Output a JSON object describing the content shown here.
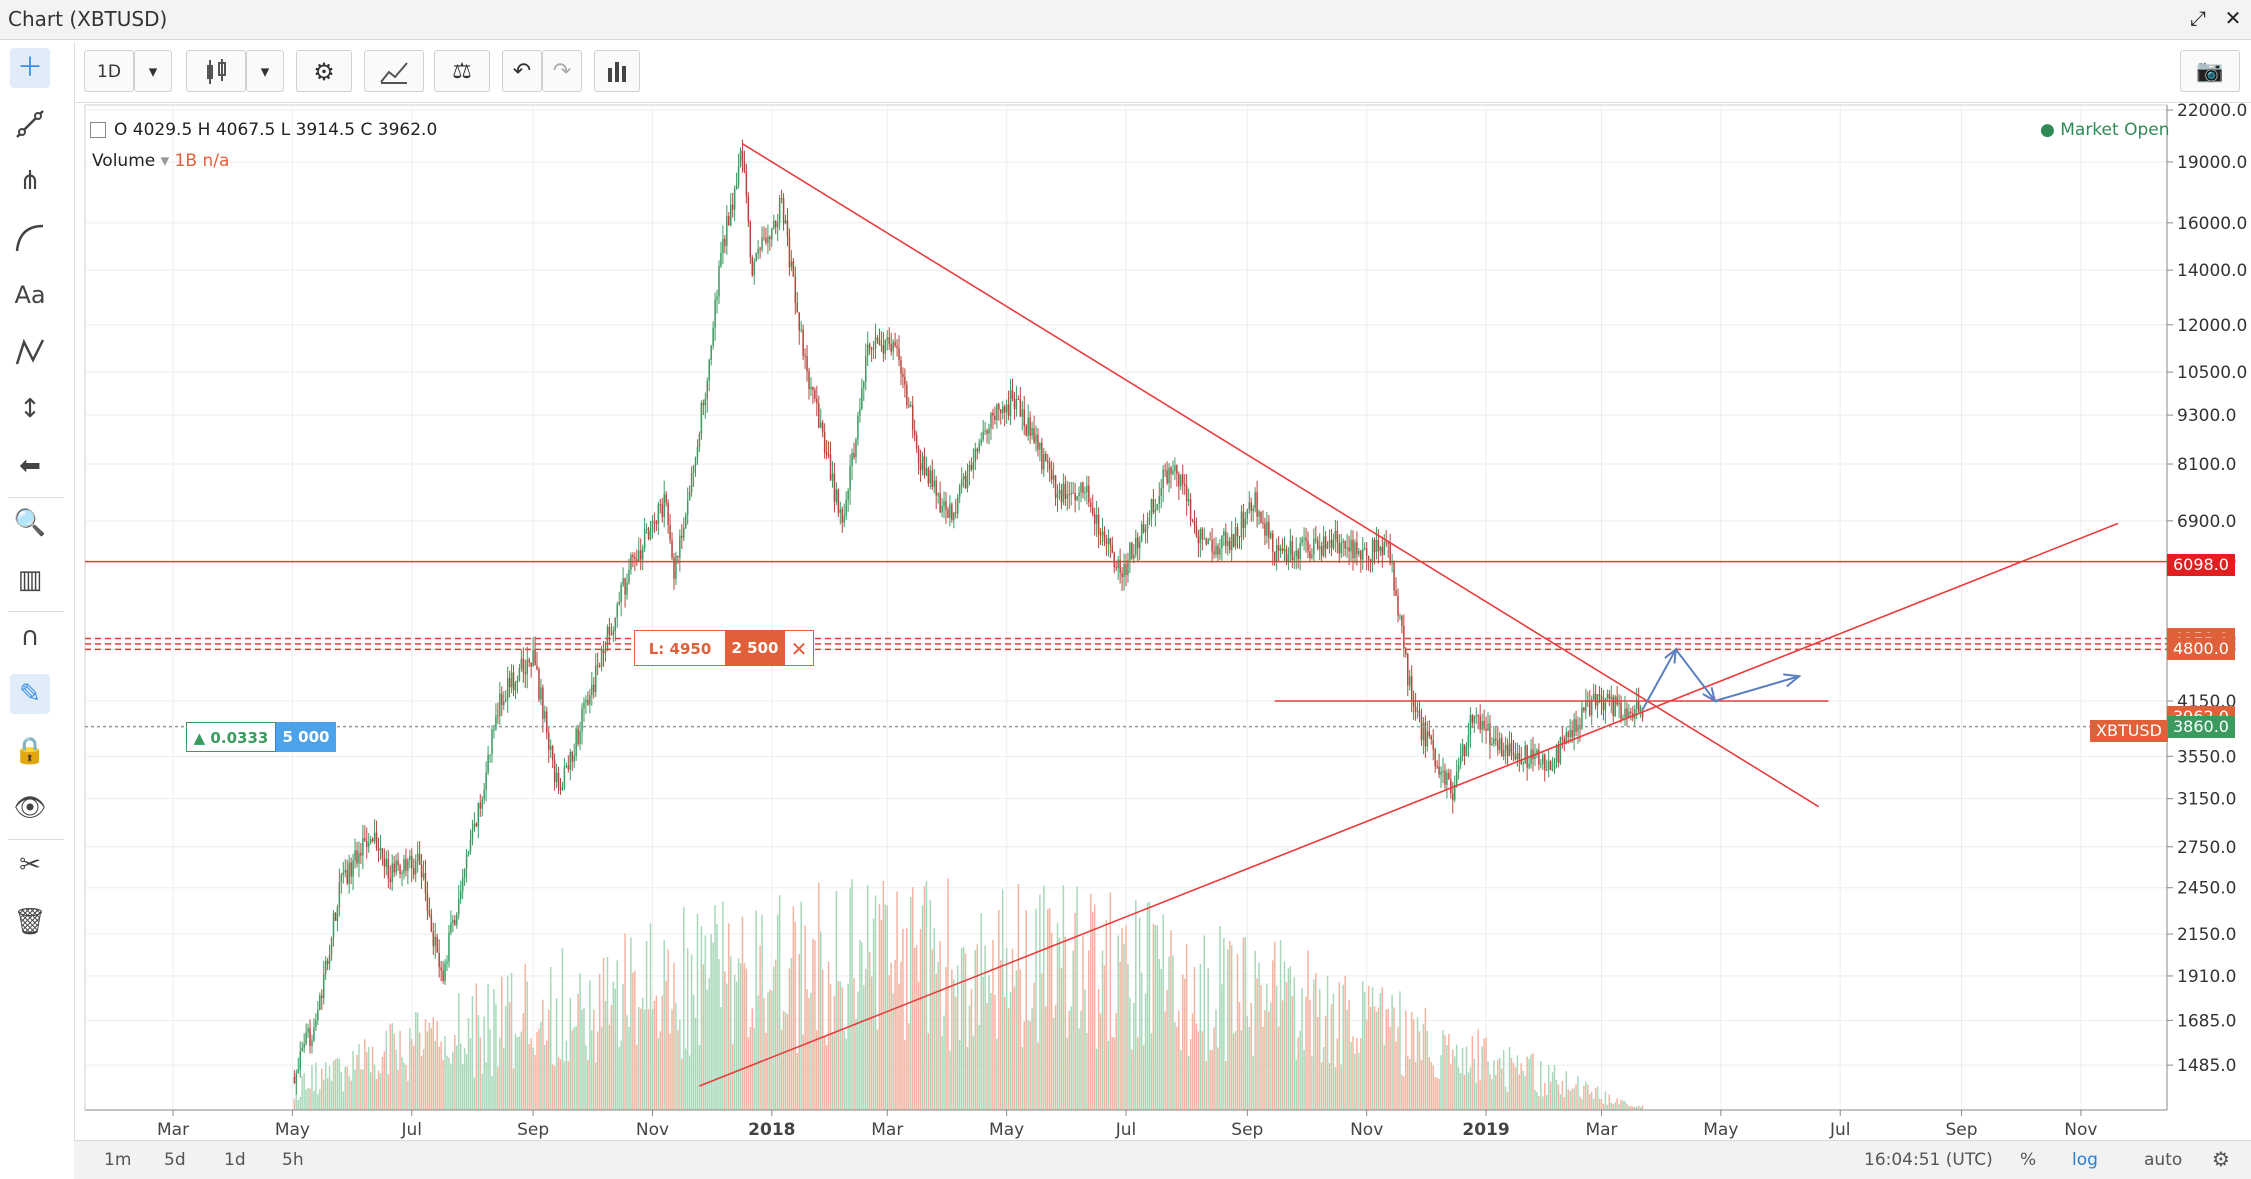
{
  "window": {
    "title": "Chart (XBTUSD)"
  },
  "toolbar": {
    "interval_label": "1D"
  },
  "legend": {
    "ohlc_text": "O 4029.5  H 4067.5  L 3914.5  C 3962.0",
    "volume_label": "Volume",
    "volume_value": "1B  n/a",
    "market_status": "● Market Open"
  },
  "orders": {
    "sell": {
      "label": "L: 4950",
      "qty": "2 500"
    },
    "buy": {
      "label": "▲ 0.0333",
      "qty": "5 000"
    }
  },
  "bottom": {
    "ranges": [
      "1m",
      "5d",
      "1d",
      "5h"
    ],
    "clock": "16:04:51 (UTC)",
    "percent": "%",
    "log": "log",
    "auto": "auto"
  },
  "colors": {
    "up": "#3c9a5f",
    "down": "#b8453c",
    "trend": "#e83c3c",
    "projection": "#5b7fbf",
    "sell_label": "#e0603a",
    "buy_label": "#4da3ea"
  },
  "chart_data": {
    "type": "candlestick",
    "symbol": "XBTUSD",
    "y_scale": "log",
    "ylim": [
      1400,
      22000
    ],
    "y_ticks": [
      "22000.0",
      "19000.0",
      "16000.0",
      "14000.0",
      "12000.0",
      "10500.0",
      "9300.0",
      "8100.0",
      "6900.0",
      "6150.0",
      "4950.0",
      "4875.0",
      "4800.0",
      "4150.0",
      "3550.0",
      "3150.0",
      "2750.0",
      "2450.0",
      "2150.0",
      "1910.0",
      "1685.0",
      "1485.0"
    ],
    "x_ticks": [
      "Mar",
      "May",
      "Jul",
      "Sep",
      "Nov",
      "2018",
      "Mar",
      "May",
      "Jul",
      "Sep",
      "Nov",
      "2019",
      "Mar",
      "May",
      "Jul",
      "Sep",
      "Nov"
    ],
    "x_tick_months": [
      "2017-03",
      "2017-05",
      "2017-07",
      "2017-09",
      "2017-11",
      "2018-01",
      "2018-03",
      "2018-05",
      "2018-07",
      "2018-09",
      "2018-11",
      "2019-01",
      "2019-03",
      "2019-05",
      "2019-07",
      "2019-09",
      "2019-11"
    ],
    "x_range": [
      "2017-01-15",
      "2019-12-15"
    ],
    "price_path": [
      [
        "2017-05-01",
        1420
      ],
      [
        "2017-05-15",
        1750
      ],
      [
        "2017-05-25",
        2450
      ],
      [
        "2017-06-10",
        2900
      ],
      [
        "2017-06-20",
        2550
      ],
      [
        "2017-07-05",
        2650
      ],
      [
        "2017-07-16",
        1900
      ],
      [
        "2017-08-05",
        3100
      ],
      [
        "2017-08-15",
        4200
      ],
      [
        "2017-09-01",
        4700
      ],
      [
        "2017-09-14",
        3200
      ],
      [
        "2017-10-01",
        4300
      ],
      [
        "2017-10-20",
        6000
      ],
      [
        "2017-11-08",
        7300
      ],
      [
        "2017-11-12",
        5900
      ],
      [
        "2017-11-28",
        10000
      ],
      [
        "2017-12-07",
        15000
      ],
      [
        "2017-12-17",
        19500
      ],
      [
        "2017-12-22",
        14000
      ],
      [
        "2018-01-06",
        17000
      ],
      [
        "2018-01-17",
        11000
      ],
      [
        "2018-02-06",
        6800
      ],
      [
        "2018-02-20",
        11500
      ],
      [
        "2018-03-05",
        11300
      ],
      [
        "2018-03-18",
        8200
      ],
      [
        "2018-04-01",
        6900
      ],
      [
        "2018-04-25",
        9400
      ],
      [
        "2018-05-05",
        9700
      ],
      [
        "2018-05-28",
        7400
      ],
      [
        "2018-06-10",
        7500
      ],
      [
        "2018-06-28",
        5900
      ],
      [
        "2018-07-25",
        8200
      ],
      [
        "2018-08-10",
        6400
      ],
      [
        "2018-08-25",
        6600
      ],
      [
        "2018-09-05",
        7300
      ],
      [
        "2018-09-15",
        6300
      ],
      [
        "2018-10-15",
        6500
      ],
      [
        "2018-11-13",
        6300
      ],
      [
        "2018-11-20",
        4800
      ],
      [
        "2018-11-25",
        4000
      ],
      [
        "2018-12-15",
        3200
      ],
      [
        "2018-12-25",
        4000
      ],
      [
        "2019-01-10",
        3650
      ],
      [
        "2019-02-01",
        3450
      ],
      [
        "2019-02-18",
        3900
      ],
      [
        "2019-02-24",
        4150
      ],
      [
        "2019-03-18",
        4030
      ],
      [
        "2019-03-22",
        3962
      ]
    ],
    "last_ohlc": {
      "open": 4029.5,
      "high": 4067.5,
      "low": 3914.5,
      "close": 3962.0
    },
    "price_labels": [
      {
        "value": 6098.0,
        "text": "6098.0",
        "color": "#e02020"
      },
      {
        "value": 4950.0,
        "text": "4950.0",
        "color": "#e0603a"
      },
      {
        "value": 4875.0,
        "text": "4875.0",
        "color": "#e0603a"
      },
      {
        "value": 4800.0,
        "text": "4800.0",
        "color": "#e0603a"
      },
      {
        "value": 3962.0,
        "text": "3962.0",
        "color": "#e0603a"
      },
      {
        "value": 3860.0,
        "text": "3860.0",
        "color": "#3c9a5f"
      }
    ],
    "symbol_label": "XBTUSD",
    "horizontal_lines": [
      {
        "value": 6150,
        "from": "2017-01-15",
        "to": "2019-12-15",
        "style": "solid"
      },
      {
        "value": 4950,
        "from": "2017-01-15",
        "to": "2019-12-15",
        "style": "dashed"
      },
      {
        "value": 4875,
        "from": "2017-01-15",
        "to": "2019-12-15",
        "style": "dashed"
      },
      {
        "value": 4800,
        "from": "2017-01-15",
        "to": "2019-12-15",
        "style": "dashed"
      },
      {
        "value": 3860,
        "from": "2017-01-15",
        "to": "2019-12-15",
        "style": "dotted"
      },
      {
        "value": 4150,
        "from": "2018-09-15",
        "to": "2019-06-25",
        "style": "solid"
      }
    ],
    "trend_lines": [
      {
        "from": [
          "2017-12-17",
          20000
        ],
        "to": [
          "2019-06-20",
          3080
        ]
      },
      {
        "from": [
          "2017-11-25",
          1400
        ],
        "to": [
          "2019-11-20",
          6850
        ]
      }
    ],
    "projection": [
      [
        "2019-03-22",
        4050
      ],
      [
        "2019-04-08",
        4800
      ],
      [
        "2019-04-28",
        4150
      ],
      [
        "2019-06-10",
        4450
      ]
    ],
    "volume_scale_max": 1500
  }
}
